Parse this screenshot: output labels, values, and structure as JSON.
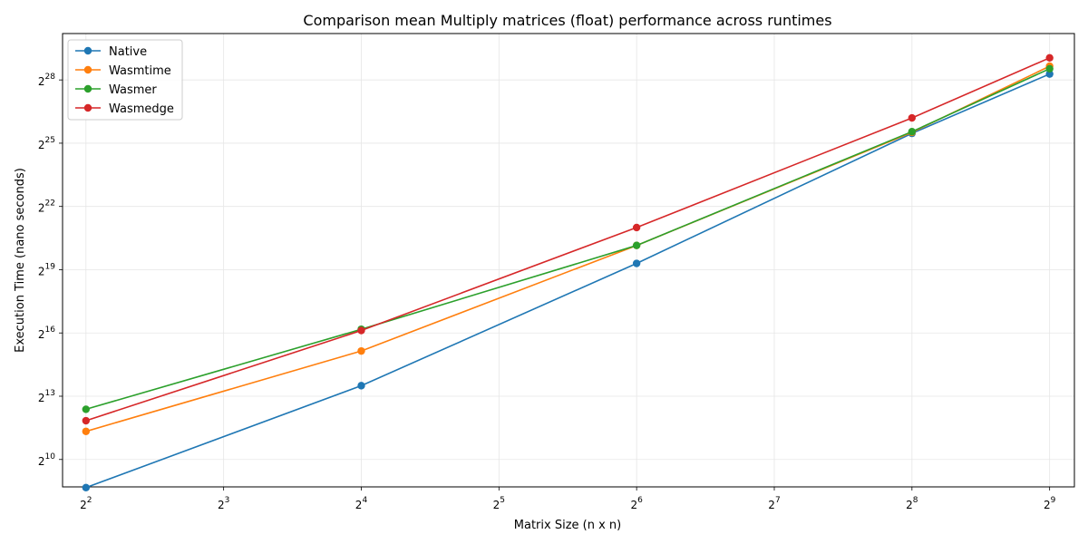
{
  "chart_data": {
    "type": "line",
    "title": "Comparison mean Multiply matrices (float) performance across runtimes",
    "xlabel": "Matrix Size (n x n)",
    "ylabel": "Execution Time (nano seconds)",
    "x_scale": "log2",
    "y_scale": "log2",
    "x": [
      4,
      16,
      64,
      256,
      512
    ],
    "x_ticks": [
      "2^2",
      "2^3",
      "2^4",
      "2^5",
      "2^6",
      "2^7",
      "2^8",
      "2^9"
    ],
    "y_ticks": [
      "2^10",
      "2^13",
      "2^16",
      "2^19",
      "2^22",
      "2^25",
      "2^28"
    ],
    "xlim_log2": [
      1.83,
      9.18
    ],
    "ylim_log2": [
      8.7,
      30.2
    ],
    "grid": true,
    "legend_position": "upper-left",
    "series": [
      {
        "name": "Native",
        "color": "#1f77b4",
        "values": [
          406,
          11585,
          645000,
          46340000,
          326000000
        ]
      },
      {
        "name": "Wasmtime",
        "color": "#ff7f0e",
        "values": [
          2580,
          36200,
          1165000,
          47900000,
          422000000
        ]
      },
      {
        "name": "Wasmer",
        "color": "#2ca02c",
        "values": [
          5330,
          74000,
          1165000,
          49000000,
          388000000
        ]
      },
      {
        "name": "Wasmedge",
        "color": "#d62728",
        "values": [
          3660,
          71000,
          2100000,
          77000000,
          555000000
        ]
      }
    ]
  }
}
